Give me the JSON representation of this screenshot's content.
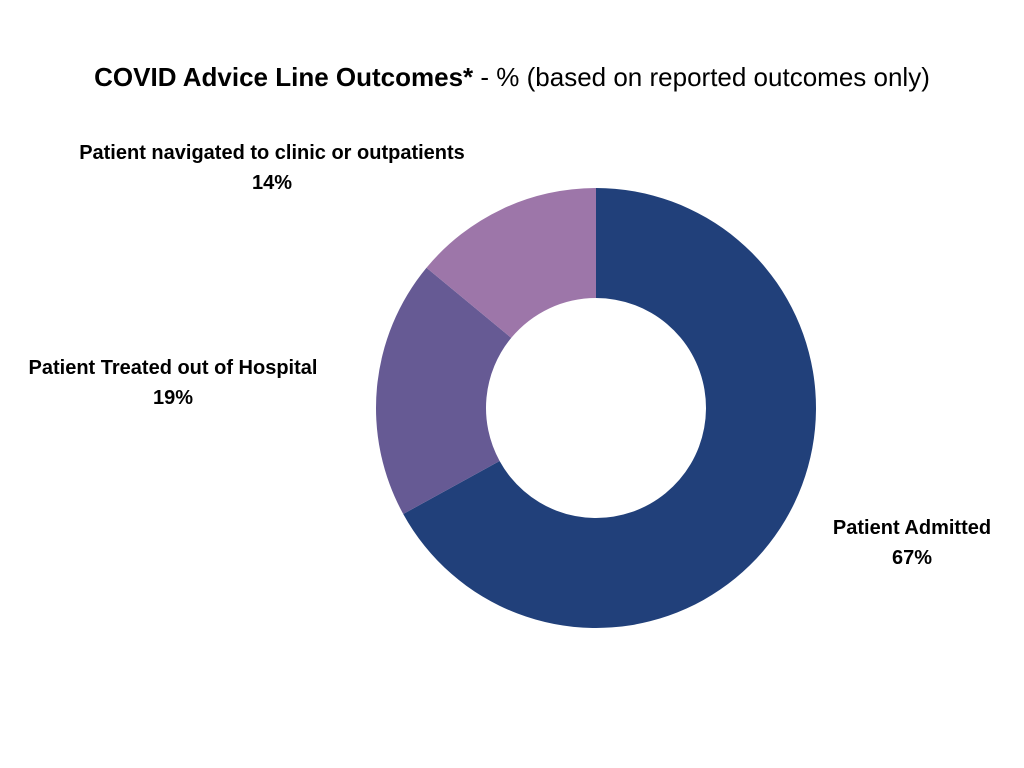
{
  "chart_data": {
    "type": "pie",
    "style": "donut",
    "title": "COVID Advice Line Outcomes*",
    "subtitle": "- % (based on reported outcomes only)",
    "categories": [
      "Patient Admitted",
      "Patient Treated out of Hospital",
      "Patient navigated to clinic or outpatients"
    ],
    "values": [
      67,
      19,
      14
    ],
    "value_labels": [
      "67%",
      "19%",
      "14%"
    ],
    "colors": [
      "#21407a",
      "#665a94",
      "#9d76a9"
    ],
    "legend": "none"
  }
}
